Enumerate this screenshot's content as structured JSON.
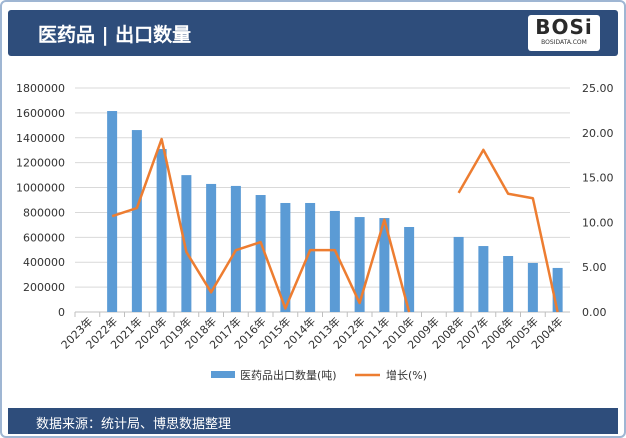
{
  "header": {
    "title": "医药品 | 出口数量",
    "logo": "BOSi",
    "logo_sub": "BOSIDATA.COM"
  },
  "footer": {
    "source": "数据来源：统计局、博思数据整理"
  },
  "colors": {
    "bar": "#5b9bd5",
    "line": "#ed7d31",
    "header": "#2e4d7b"
  },
  "chart_data": {
    "type": "bar+line",
    "categories": [
      "2023年",
      "2022年",
      "2021年",
      "2020年",
      "2019年",
      "2018年",
      "2017年",
      "2016年",
      "2015年",
      "2014年",
      "2013年",
      "2012年",
      "2011年",
      "2010年",
      "2009年",
      "2008年",
      "2007年",
      "2006年",
      "2005年",
      "2004年"
    ],
    "series": [
      {
        "name": "医药品出口数量(吨)",
        "type": "bar",
        "axis": "left",
        "values": [
          null,
          1615000,
          1462000,
          1310000,
          1100000,
          1029000,
          1013000,
          940000,
          876000,
          876000,
          812000,
          763000,
          755000,
          683000,
          null,
          603000,
          530000,
          450000,
          394000,
          354000
        ]
      },
      {
        "name": "增长(%)",
        "type": "line",
        "axis": "right",
        "values": [
          null,
          10.7,
          11.6,
          19.3,
          6.7,
          2.2,
          6.9,
          7.8,
          0.4,
          6.9,
          6.9,
          1.0,
          10.3,
          0.0,
          null,
          13.3,
          18.1,
          13.2,
          12.7,
          0.0
        ]
      }
    ],
    "left_axis": {
      "ylim": [
        0,
        1800000
      ],
      "ticks": [
        "0",
        "200000",
        "400000",
        "600000",
        "800000",
        "1000000",
        "1200000",
        "1400000",
        "1600000",
        "1800000"
      ]
    },
    "right_axis": {
      "ylim": [
        0,
        25
      ],
      "ticks": [
        "0.00",
        "5.00",
        "10.00",
        "15.00",
        "20.00",
        "25.00"
      ]
    },
    "grid": true,
    "legend": "bottom"
  }
}
